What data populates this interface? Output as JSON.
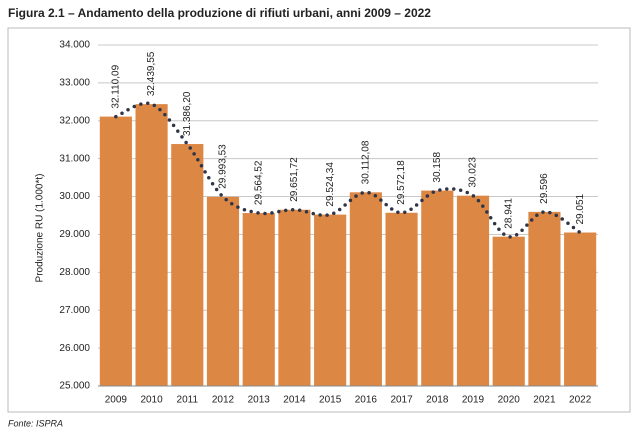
{
  "chart_data": {
    "type": "bar",
    "title": "Figura 2.1 – Andamento della produzione di rifiuti urbani, anni 2009 – 2022",
    "y_label": "Produzione RU (1.000*t)",
    "source": "Fonte: ISPRA",
    "categories": [
      "2009",
      "2010",
      "2011",
      "2012",
      "2013",
      "2014",
      "2015",
      "2016",
      "2017",
      "2018",
      "2019",
      "2020",
      "2021",
      "2022"
    ],
    "values": [
      32110.09,
      32439.55,
      31386.2,
      29993.53,
      29564.52,
      29651.72,
      29524.34,
      30112.08,
      29572.18,
      30158,
      30023,
      28941,
      29596,
      29051
    ],
    "value_labels": [
      "32.110,09",
      "32.439,55",
      "31.386,20",
      "29.993,53",
      "29.564,52",
      "29.651,72",
      "29.524,34",
      "30.112,08",
      "29.572,18",
      "30.158",
      "30.023",
      "28.941",
      "29.596",
      "29.051"
    ],
    "color": "#dd8744",
    "trend_line": true,
    "line_color": "#2e3547",
    "ylim": [
      25000,
      34000
    ],
    "yticks": [
      {
        "value": 25000,
        "label": "25.000"
      },
      {
        "value": 26000,
        "label": "26.000"
      },
      {
        "value": 27000,
        "label": "27.000"
      },
      {
        "value": 28000,
        "label": "28.000"
      },
      {
        "value": 29000,
        "label": "29.000"
      },
      {
        "value": 30000,
        "label": "30.000"
      },
      {
        "value": 31000,
        "label": "31.000"
      },
      {
        "value": 32000,
        "label": "32.000"
      },
      {
        "value": 33000,
        "label": "33.000"
      },
      {
        "value": 34000,
        "label": "34.000"
      }
    ],
    "grid": true
  }
}
